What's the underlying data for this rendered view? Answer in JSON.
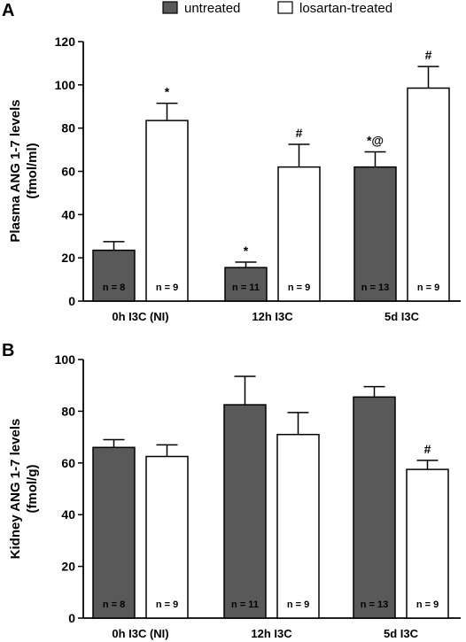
{
  "legend": [
    {
      "label": "untreated",
      "color": "#595959"
    },
    {
      "label": "losartan-treated",
      "color": "#ffffff"
    }
  ],
  "chart_data": [
    {
      "type": "bar",
      "panel": "A",
      "ylabel_line1": "Plasma ANG 1-7 levels",
      "ylabel_line2": "(fmol/ml)",
      "ylim": [
        0,
        120
      ],
      "yticks": [
        0,
        20,
        40,
        60,
        80,
        100,
        120
      ],
      "categories": [
        "0h I3C (NI)",
        "12h I3C",
        "5d I3C"
      ],
      "series": [
        {
          "name": "untreated",
          "values": [
            23.5,
            15.5,
            62
          ],
          "errors": [
            4,
            2.5,
            7
          ],
          "n": [
            "n = 8",
            "n = 11",
            "n = 13"
          ],
          "annotations": [
            "",
            "*",
            "*@"
          ]
        },
        {
          "name": "losartan-treated",
          "values": [
            83.5,
            62,
            98.5
          ],
          "errors": [
            8,
            10.5,
            10
          ],
          "n": [
            "n = 9",
            "n = 9",
            "n = 9"
          ],
          "annotations": [
            "*",
            "#",
            "#"
          ]
        }
      ]
    },
    {
      "type": "bar",
      "panel": "B",
      "ylabel_line1": "Kidney ANG 1-7 levels",
      "ylabel_line2": "(fmol/g)",
      "ylim": [
        0,
        100
      ],
      "yticks": [
        0,
        20,
        40,
        60,
        80,
        100
      ],
      "categories": [
        "0h I3C (NI)",
        "12h I3C",
        "5d I3C"
      ],
      "series": [
        {
          "name": "untreated",
          "values": [
            66,
            82.5,
            85.5
          ],
          "errors": [
            3,
            11,
            4
          ],
          "n": [
            "n = 8",
            "n = 11",
            "n = 13"
          ],
          "annotations": [
            "",
            "",
            ""
          ]
        },
        {
          "name": "losartan-treated",
          "values": [
            62.5,
            71,
            57.5
          ],
          "errors": [
            4.5,
            8.5,
            3.5
          ],
          "n": [
            "n = 9",
            "n = 9",
            "n = 9"
          ],
          "annotations": [
            "",
            "",
            "#"
          ]
        }
      ]
    }
  ]
}
